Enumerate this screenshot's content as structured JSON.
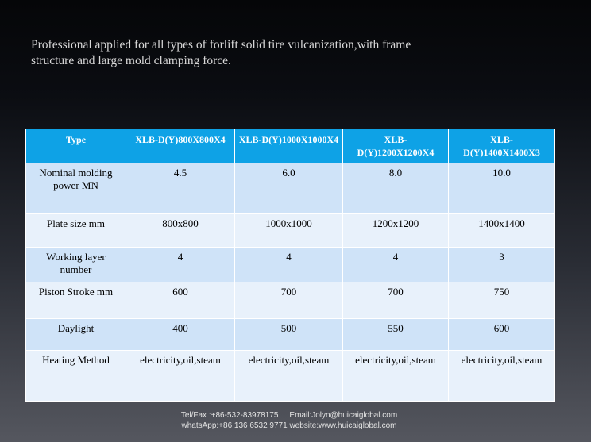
{
  "intro": {
    "line1": "Professional applied for all types of forlift solid tire vulcanization,with frame",
    "line2": "structure and large mold clamping force."
  },
  "table": {
    "headers": [
      "Type",
      "XLB-D(Y)800X800X4",
      "XLB-D(Y)1000X1000X4",
      "XLB-D(Y)1200X1200X4",
      "XLB-D(Y)1400X1400X3"
    ],
    "rows": [
      [
        "Nominal molding power MN",
        "4.5",
        "6.0",
        "8.0",
        "10.0"
      ],
      [
        "Plate size mm",
        "800x800",
        "1000x1000",
        "1200x1200",
        "1400x1400"
      ],
      [
        "Working layer number",
        "4",
        "4",
        "4",
        "3"
      ],
      [
        "Piston Stroke mm",
        "600",
        "700",
        "700",
        "750"
      ],
      [
        "Daylight",
        "400",
        "500",
        "550",
        "600"
      ],
      [
        "Heating Method",
        "electricity,oil,steam",
        "electricity,oil,steam",
        "electricity,oil,steam",
        "electricity,oil,steam"
      ]
    ]
  },
  "footer": {
    "tel": "Tel/Fax :+86-532-83978175",
    "email": "Email:Jolyn@huicaiglobal.com",
    "whatsapp": "whatsApp:+86 136 6532 9771",
    "website": "website:www.huicaiglobal.com"
  }
}
